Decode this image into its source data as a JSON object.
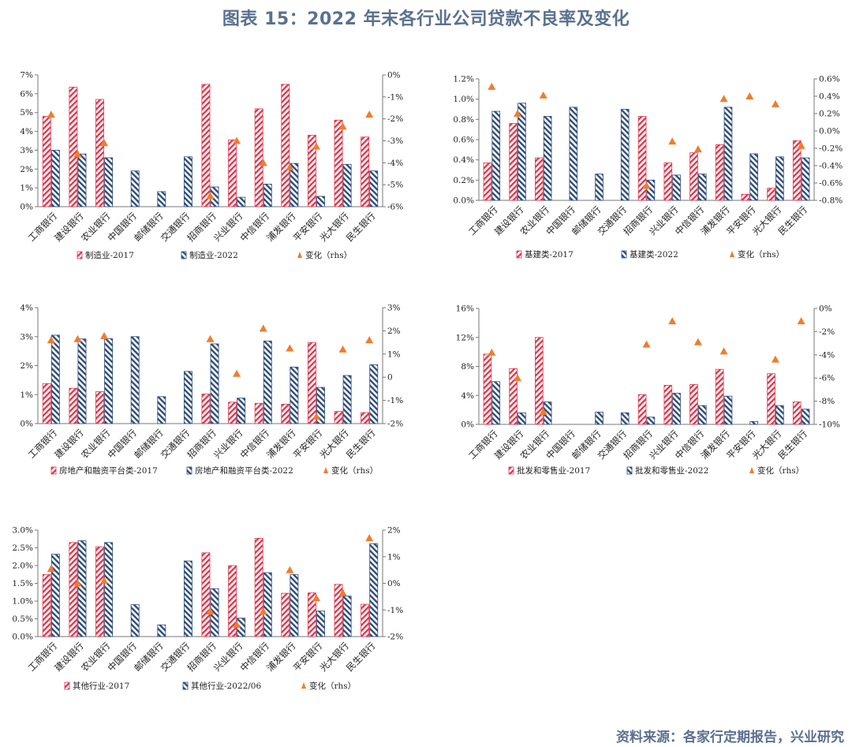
{
  "title": "图表 15：2022 年末各行业公司贷款不良率及变化",
  "source": "资料来源：各家行定期报告，兴业研究",
  "colors": {
    "series2017": "#e0394f",
    "series2022": "#2e4d7a",
    "change": "#ef7d2e",
    "title": "#5b708f"
  },
  "chart_data": [
    {
      "type": "bar",
      "categories": [
        "工商银行",
        "建设银行",
        "农业银行",
        "中国银行",
        "邮储银行",
        "交通银行",
        "招商银行",
        "兴业银行",
        "中信银行",
        "浦发银行",
        "平安银行",
        "光大银行",
        "民生银行"
      ],
      "y_ticks": [
        "0%",
        "1%",
        "2%",
        "3%",
        "4%",
        "5%",
        "6%",
        "7%"
      ],
      "y2_ticks": [
        "-6%",
        "-5%",
        "-4%",
        "-3%",
        "-2%",
        "-1%",
        "0%"
      ],
      "ylim": [
        0,
        7
      ],
      "y2lim": [
        -6,
        0
      ],
      "series": [
        {
          "name": "制造业-2017",
          "values": [
            4.8,
            6.35,
            5.7,
            null,
            null,
            null,
            6.5,
            3.55,
            5.2,
            6.5,
            3.8,
            4.6,
            3.7
          ]
        },
        {
          "name": "制造业-2022",
          "values": [
            3.0,
            2.8,
            2.6,
            1.9,
            0.8,
            2.65,
            1.05,
            0.5,
            1.2,
            2.3,
            0.55,
            2.25,
            1.9
          ]
        }
      ],
      "change": {
        "name": "变化（rhs）",
        "values": [
          -1.8,
          -3.6,
          -3.1,
          null,
          null,
          null,
          -5.5,
          -3.0,
          -4.0,
          -4.2,
          -3.25,
          -2.35,
          -1.8
        ]
      }
    },
    {
      "type": "bar",
      "categories": [
        "工商银行",
        "建设银行",
        "农业银行",
        "中国银行",
        "邮储银行",
        "交通银行",
        "招商银行",
        "兴业银行",
        "中信银行",
        "浦发银行",
        "平安银行",
        "光大银行",
        "民生银行"
      ],
      "y_ticks": [
        "0.0%",
        "0.2%",
        "0.4%",
        "0.6%",
        "0.8%",
        "1.0%",
        "1.2%"
      ],
      "y2_ticks": [
        "-0.8%",
        "-0.6%",
        "-0.4%",
        "-0.2%",
        "0.0%",
        "0.2%",
        "0.4%",
        "0.6%"
      ],
      "ylim": [
        0,
        1.2
      ],
      "y2lim": [
        -0.8,
        0.6
      ],
      "series": [
        {
          "name": "基建类-2017",
          "values": [
            0.37,
            0.76,
            0.42,
            null,
            null,
            null,
            0.83,
            0.37,
            0.47,
            0.55,
            0.06,
            0.12,
            0.59
          ]
        },
        {
          "name": "基建类-2022",
          "values": [
            0.88,
            0.96,
            0.83,
            0.92,
            0.26,
            0.9,
            0.2,
            0.25,
            0.26,
            0.92,
            0.46,
            0.43,
            0.42
          ]
        }
      ],
      "change": {
        "name": "变化（rhs）",
        "values": [
          0.51,
          0.2,
          0.41,
          null,
          null,
          null,
          -0.63,
          -0.12,
          -0.21,
          0.37,
          0.4,
          0.31,
          -0.17
        ]
      }
    },
    {
      "type": "bar",
      "categories": [
        "工商银行",
        "建设银行",
        "农业银行",
        "中国银行",
        "邮储银行",
        "交通银行",
        "招商银行",
        "兴业银行",
        "中信银行",
        "浦发银行",
        "平安银行",
        "光大银行",
        "民生银行"
      ],
      "y_ticks": [
        "0%",
        "1%",
        "2%",
        "3%",
        "4%"
      ],
      "y2_ticks": [
        "-2%",
        "-1%",
        "0",
        "1%",
        "2%",
        "3%"
      ],
      "ylim": [
        0,
        4
      ],
      "y2lim": [
        -2,
        3
      ],
      "series": [
        {
          "name": "房地产和融资平台类-2017",
          "values": [
            1.38,
            1.22,
            1.1,
            null,
            null,
            null,
            1.02,
            0.74,
            0.7,
            0.67,
            2.8,
            0.42,
            0.38
          ]
        },
        {
          "name": "房地产和融资平台类-2022",
          "values": [
            3.05,
            2.92,
            2.93,
            3.0,
            0.93,
            1.8,
            2.75,
            0.88,
            2.85,
            1.95,
            1.25,
            1.66,
            2.03
          ]
        }
      ],
      "change": {
        "name": "变化（rhs）",
        "values": [
          1.6,
          1.65,
          1.78,
          null,
          null,
          null,
          1.65,
          0.15,
          2.1,
          1.25,
          -1.7,
          1.2,
          1.6
        ]
      }
    },
    {
      "type": "bar",
      "categories": [
        "工商银行",
        "建设银行",
        "农业银行",
        "中国银行",
        "邮储银行",
        "交通银行",
        "招商银行",
        "兴业银行",
        "中信银行",
        "浦发银行",
        "平安银行",
        "光大银行",
        "民生银行"
      ],
      "y_ticks": [
        "0%",
        "4%",
        "8%",
        "12%",
        "16%"
      ],
      "y2_ticks": [
        "-10%",
        "-8%",
        "-6%",
        "-4%",
        "-2%",
        "0%"
      ],
      "ylim": [
        0,
        16
      ],
      "y2lim": [
        -10,
        0
      ],
      "series": [
        {
          "name": "批发和零售业-2017",
          "values": [
            9.7,
            7.7,
            12.0,
            null,
            null,
            null,
            4.1,
            5.4,
            5.5,
            7.6,
            null,
            7.0,
            3.1
          ]
        },
        {
          "name": "批发和零售业-2022",
          "values": [
            5.9,
            1.6,
            3.1,
            null,
            1.7,
            1.6,
            1.0,
            4.3,
            2.6,
            3.9,
            0.4,
            2.6,
            2.1
          ]
        }
      ],
      "change": {
        "name": "变化（rhs）",
        "values": [
          -3.8,
          -6.0,
          -8.9,
          null,
          null,
          null,
          -3.1,
          -1.1,
          -2.9,
          -3.7,
          null,
          -4.4,
          -1.1
        ]
      }
    },
    {
      "type": "bar",
      "categories": [
        "工商银行",
        "建设银行",
        "农业银行",
        "中国银行",
        "邮储银行",
        "交通银行",
        "招商银行",
        "兴业银行",
        "中信银行",
        "浦发银行",
        "平安银行",
        "光大银行",
        "民生银行"
      ],
      "y_ticks": [
        "0.0%",
        "0.5%",
        "1.0%",
        "1.5%",
        "2.0%",
        "2.5%",
        "3.0%"
      ],
      "y2_ticks": [
        "-2%",
        "-1%",
        "0%",
        "1%",
        "2%"
      ],
      "ylim": [
        0,
        3
      ],
      "y2lim": [
        -2,
        2
      ],
      "series": [
        {
          "name": "其他行业-2017",
          "values": [
            1.75,
            2.65,
            2.53,
            null,
            null,
            null,
            2.36,
            2.0,
            2.77,
            1.22,
            1.23,
            1.47,
            0.91
          ]
        },
        {
          "name": "其他行业-2022/06",
          "values": [
            2.32,
            2.7,
            2.65,
            0.9,
            0.33,
            2.13,
            1.35,
            0.52,
            1.8,
            1.75,
            0.72,
            1.14,
            2.62
          ]
        }
      ],
      "change": {
        "name": "变化（rhs）",
        "values": [
          0.55,
          0.0,
          0.1,
          null,
          null,
          null,
          -1.05,
          -1.55,
          -1.05,
          0.5,
          -0.55,
          -0.35,
          1.7
        ]
      }
    }
  ]
}
